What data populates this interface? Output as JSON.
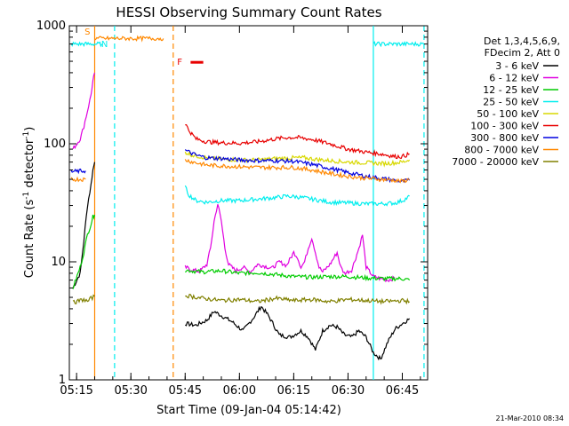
{
  "chart_data": {
    "type": "line",
    "title": "HESSI Observing Summary Count Rates",
    "xlabel": "Start Time (09-Jan-04 05:14:42)",
    "ylabel_main": "Count Rate (s",
    "ylabel_sup1": "-1",
    "ylabel_mid": " detector",
    "ylabel_sup2": "-1",
    "ylabel_end": ")",
    "yscale": "log",
    "ylim": [
      1,
      1000
    ],
    "xlim_minutes": [
      -2,
      97
    ],
    "x_ticks": [
      {
        "label": "05:15",
        "minutes": 0
      },
      {
        "label": "05:30",
        "minutes": 15
      },
      {
        "label": "05:45",
        "minutes": 30
      },
      {
        "label": "06:00",
        "minutes": 45
      },
      {
        "label": "06:15",
        "minutes": 60
      },
      {
        "label": "06:30",
        "minutes": 75
      },
      {
        "label": "06:45",
        "minutes": 90
      }
    ],
    "y_ticks": [
      {
        "label": "1",
        "value": 1
      },
      {
        "label": "10",
        "value": 10
      },
      {
        "label": "100",
        "value": 100
      },
      {
        "label": "1000",
        "value": 1000
      }
    ],
    "legend_header": [
      "Det 1,3,4,5,6,9,",
      "FDecim 2, Att 0"
    ],
    "legend_placement": "right",
    "series": [
      {
        "name": "3 - 6 keV",
        "color": "#000000",
        "segments": [
          [
            [
              -1,
              6
            ],
            [
              1,
              8
            ],
            [
              2,
              15
            ],
            [
              3,
              30
            ],
            [
              4,
              45
            ],
            [
              4.5,
              60
            ],
            [
              5,
              70
            ]
          ],
          [
            [
              30,
              3
            ],
            [
              33,
              2.9
            ],
            [
              36,
              3.2
            ],
            [
              38,
              3.8
            ],
            [
              40,
              3.5
            ],
            [
              43,
              3.1
            ],
            [
              46,
              2.6
            ],
            [
              49,
              3.4
            ],
            [
              51,
              4.2
            ],
            [
              53,
              3.5
            ],
            [
              56,
              2.4
            ],
            [
              59,
              2.3
            ],
            [
              62,
              2.6
            ],
            [
              64,
              2.3
            ],
            [
              66,
              1.8
            ],
            [
              68,
              2.6
            ],
            [
              70,
              2.9
            ],
            [
              72,
              2.8
            ],
            [
              74,
              2.4
            ],
            [
              76,
              2.3
            ],
            [
              78,
              2.6
            ],
            [
              80,
              2.3
            ],
            [
              82,
              1.7
            ],
            [
              84,
              1.5
            ],
            [
              86,
              2.1
            ],
            [
              88,
              2.7
            ],
            [
              90,
              3.0
            ],
            [
              92,
              3.3
            ]
          ]
        ]
      },
      {
        "name": "6 - 12 keV",
        "color": "#e000e0",
        "segments": [
          [
            [
              -1,
              90
            ],
            [
              1,
              110
            ],
            [
              2,
              140
            ],
            [
              3,
              190
            ],
            [
              4,
              260
            ],
            [
              4.5,
              340
            ],
            [
              5,
              400
            ]
          ],
          [
            [
              30,
              9
            ],
            [
              32,
              8.5
            ],
            [
              34,
              8.3
            ],
            [
              36,
              9.5
            ],
            [
              37,
              13
            ],
            [
              38,
              22
            ],
            [
              39,
              31
            ],
            [
              40,
              22
            ],
            [
              41,
              13
            ],
            [
              42,
              9.5
            ],
            [
              44,
              8.4
            ],
            [
              46,
              9
            ],
            [
              48,
              8.2
            ],
            [
              50,
              9.5
            ],
            [
              52,
              9.2
            ],
            [
              54,
              8.8
            ],
            [
              56,
              10
            ],
            [
              58,
              9.3
            ],
            [
              60,
              12
            ],
            [
              61,
              11
            ],
            [
              62,
              9
            ],
            [
              63,
              10
            ],
            [
              64,
              13
            ],
            [
              65,
              16
            ],
            [
              66,
              12
            ],
            [
              67,
              9
            ],
            [
              68,
              8.2
            ],
            [
              70,
              9.5
            ],
            [
              72,
              12
            ],
            [
              73,
              9
            ],
            [
              74,
              8
            ],
            [
              76,
              8.5
            ],
            [
              78,
              13
            ],
            [
              79,
              17
            ],
            [
              80,
              9
            ],
            [
              82,
              7.5
            ],
            [
              84,
              7.2
            ],
            [
              86,
              7
            ],
            [
              88,
              7.3
            ]
          ]
        ]
      },
      {
        "name": "12 - 25 keV",
        "color": "#00cc00",
        "segments": [
          [
            [
              -1,
              6
            ],
            [
              1,
              9
            ],
            [
              2,
              12
            ],
            [
              3,
              17
            ],
            [
              4,
              21
            ],
            [
              4.5,
              24
            ],
            [
              5,
              25
            ]
          ],
          [
            [
              30,
              8.5
            ],
            [
              35,
              8.2
            ],
            [
              40,
              8.4
            ],
            [
              45,
              8
            ],
            [
              50,
              8.1
            ],
            [
              55,
              7.8
            ],
            [
              60,
              7.5
            ],
            [
              65,
              7.4
            ],
            [
              70,
              7.5
            ],
            [
              75,
              7.5
            ],
            [
              80,
              7.3
            ],
            [
              85,
              7.2
            ],
            [
              90,
              7.2
            ],
            [
              92,
              7.0
            ]
          ]
        ]
      },
      {
        "name": "25 - 50 keV",
        "color": "#00eeee",
        "segments": [
          [
            [
              -1.5,
              700
            ],
            [
              7,
              700
            ]
          ],
          [
            [
              30,
              43
            ],
            [
              31,
              37
            ],
            [
              33,
              33
            ],
            [
              36,
              32
            ],
            [
              40,
              33
            ],
            [
              45,
              33
            ],
            [
              50,
              34
            ],
            [
              55,
              35
            ],
            [
              58,
              36
            ],
            [
              61,
              35.5
            ],
            [
              65,
              34
            ],
            [
              70,
              32
            ],
            [
              75,
              31.5
            ],
            [
              80,
              31
            ],
            [
              84,
              31
            ],
            [
              88,
              31.5
            ],
            [
              90,
              33
            ],
            [
              91.5,
              35
            ],
            [
              92,
              36
            ]
          ],
          [
            [
              82,
              700
            ],
            [
              96,
              700
            ]
          ]
        ]
      },
      {
        "name": "50 - 100 keV",
        "color": "#d8d800",
        "segments": [
          [
            [
              30,
              85
            ],
            [
              32,
              80
            ],
            [
              36,
              76
            ],
            [
              40,
              74
            ],
            [
              45,
              73
            ],
            [
              50,
              73
            ],
            [
              55,
              75
            ],
            [
              60,
              76
            ],
            [
              63,
              76
            ],
            [
              66,
              74
            ],
            [
              70,
              72
            ],
            [
              75,
              70
            ],
            [
              80,
              69
            ],
            [
              85,
              68
            ],
            [
              88,
              69
            ],
            [
              90,
              70
            ],
            [
              92,
              73
            ]
          ]
        ]
      },
      {
        "name": "100 - 300 keV",
        "color": "#e80000",
        "segments": [
          [
            [
              30,
              150
            ],
            [
              31,
              130
            ],
            [
              33,
              110
            ],
            [
              36,
              104
            ],
            [
              40,
              102
            ],
            [
              45,
              101
            ],
            [
              50,
              104
            ],
            [
              55,
              110
            ],
            [
              58,
              113
            ],
            [
              61,
              113
            ],
            [
              65,
              109
            ],
            [
              70,
              100
            ],
            [
              75,
              90
            ],
            [
              80,
              85
            ],
            [
              84,
              82
            ],
            [
              86,
              80
            ],
            [
              88,
              78
            ],
            [
              90,
              78
            ],
            [
              92,
              82
            ]
          ]
        ]
      },
      {
        "name": "300 - 800 keV",
        "color": "#0000e0",
        "segments": [
          [
            [
              -1.5,
              58
            ],
            [
              2.5,
              59
            ]
          ],
          [
            [
              30,
              88
            ],
            [
              33,
              80
            ],
            [
              36,
              76
            ],
            [
              40,
              75
            ],
            [
              45,
              73
            ],
            [
              50,
              72
            ],
            [
              55,
              72
            ],
            [
              60,
              71
            ],
            [
              65,
              67
            ],
            [
              70,
              62
            ],
            [
              75,
              57
            ],
            [
              80,
              53
            ],
            [
              84,
              51
            ],
            [
              88,
              49
            ],
            [
              90,
              48
            ],
            [
              92,
              49
            ]
          ]
        ]
      },
      {
        "name": "800 - 7000 keV",
        "color": "#ff8800",
        "segments": [
          [
            [
              -1.5,
              50
            ],
            [
              2.5,
              50
            ]
          ],
          [
            [
              30,
              73
            ],
            [
              33,
              69
            ],
            [
              36,
              66
            ],
            [
              40,
              65
            ],
            [
              45,
              64
            ],
            [
              50,
              63
            ],
            [
              55,
              63
            ],
            [
              60,
              63
            ],
            [
              65,
              60
            ],
            [
              70,
              56
            ],
            [
              75,
              53
            ],
            [
              80,
              51
            ],
            [
              84,
              50
            ],
            [
              88,
              49
            ],
            [
              90,
              48
            ],
            [
              92,
              50
            ]
          ],
          [
            [
              5,
              780
            ],
            [
              24,
              780
            ]
          ]
        ]
      },
      {
        "name": "7000 - 20000 keV",
        "color": "#808000",
        "segments": [
          [
            [
              -1,
              4.5
            ],
            [
              1,
              4.7
            ],
            [
              2,
              4.8
            ],
            [
              3,
              4.6
            ],
            [
              4,
              4.9
            ],
            [
              5,
              5.1
            ]
          ],
          [
            [
              30,
              5.2
            ],
            [
              35,
              4.9
            ],
            [
              40,
              4.7
            ],
            [
              45,
              4.8
            ],
            [
              50,
              4.6
            ],
            [
              55,
              4.9
            ],
            [
              60,
              4.7
            ],
            [
              65,
              4.8
            ],
            [
              70,
              4.6
            ],
            [
              75,
              4.8
            ],
            [
              80,
              4.7
            ],
            [
              85,
              4.6
            ],
            [
              90,
              4.7
            ],
            [
              92,
              4.6
            ]
          ]
        ]
      }
    ],
    "vertical_lines": [
      {
        "minutes": 5,
        "color": "#ff8800",
        "style": "solid"
      },
      {
        "minutes": 10.5,
        "color": "#00eeee",
        "style": "dashed"
      },
      {
        "minutes": 26.7,
        "color": "#ff8800",
        "style": "dashed"
      },
      {
        "minutes": 82,
        "color": "#00eeee",
        "style": "solid"
      },
      {
        "minutes": 96,
        "color": "#00eeee",
        "style": "dashed"
      }
    ],
    "annotations": [
      {
        "text": "S",
        "color": "#ff8800",
        "x_minutes": 2.2,
        "y_value": 840
      },
      {
        "text": "N",
        "color": "#00eeee",
        "x_minutes": 6.8,
        "y_value": 660
      },
      {
        "text": "F",
        "color": "#e80000",
        "x_minutes": 27.8,
        "y_value": 465
      }
    ],
    "flare_bar": {
      "color": "#e80000",
      "x_minutes": [
        31.5,
        35
      ],
      "y_value": 490
    },
    "footer": "21-Mar-2010 08:34"
  }
}
